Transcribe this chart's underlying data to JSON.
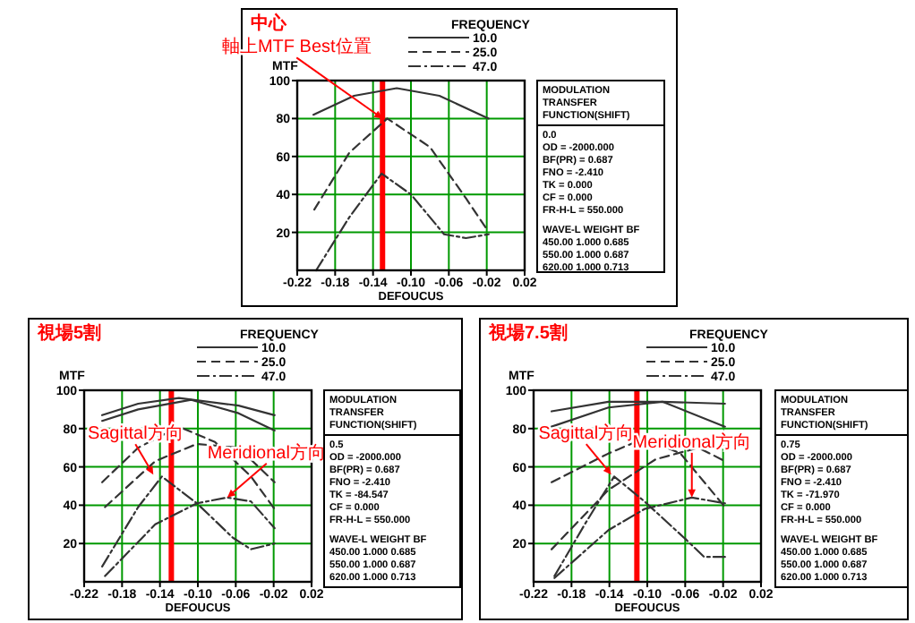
{
  "chart_data": [
    {
      "type": "line",
      "title": "中心",
      "xlabel": "DEFOUCUS",
      "ylabel": "MTF",
      "legend_title": "FREQUENCY",
      "legend": "top",
      "grid": true,
      "xlim": [
        -0.22,
        0.02
      ],
      "ylim": [
        0,
        100
      ],
      "xticks": [
        {
          "value": -0.22,
          "label": "-0.22"
        },
        {
          "value": -0.18,
          "label": "-0.18"
        },
        {
          "value": -0.14,
          "label": "-0.14"
        },
        {
          "value": -0.1,
          "label": "-0.10"
        },
        {
          "value": -0.06,
          "label": "-0.06"
        },
        {
          "value": -0.02,
          "label": "-0.02"
        },
        {
          "value": 0.02,
          "label": "0.02"
        }
      ],
      "yticks": [
        20,
        40,
        60,
        80,
        100
      ],
      "ref_lines": [
        {
          "axis": "x",
          "value": -0.13,
          "color": "#ff0000"
        }
      ],
      "series": [
        {
          "name": "10.0",
          "color": "#333333",
          "line_style": "solid",
          "x": [
            -0.203,
            -0.16,
            -0.115,
            -0.07,
            -0.018
          ],
          "values": [
            82,
            92,
            96,
            92,
            80
          ]
        },
        {
          "name": "25.0",
          "color": "#333333",
          "line_style": "dashed",
          "x": [
            -0.202,
            -0.165,
            -0.125,
            -0.08,
            -0.042,
            -0.019
          ],
          "values": [
            32,
            62,
            80,
            65,
            38,
            21
          ]
        },
        {
          "name": "47.0",
          "color": "#333333",
          "line_style": "dashdot",
          "x": [
            -0.2,
            -0.165,
            -0.131,
            -0.1,
            -0.065,
            -0.042,
            -0.018
          ],
          "values": [
            0,
            28,
            51,
            40,
            19,
            17,
            19
          ]
        }
      ],
      "annotations": [
        {
          "text": "軸上MTF Best位置",
          "x": -0.13,
          "y": 80
        },
        "MODULATION",
        "TRANSFER",
        "FUNCTION(SHIFT)",
        "0.0",
        "OD = -2000.000",
        "BF(PR) = 0.687",
        "FNO = -2.410",
        "TK = 0.000",
        "CF = 0.000",
        "FR-H-L = 550.000",
        "WAVE-L  WEIGHT  BF",
        "450.00  1.000  0.685",
        "550.00  1.000  0.687",
        "620.00  1.000  0.713"
      ]
    },
    {
      "type": "line",
      "title": "視場5割",
      "xlabel": "DEFOUCUS",
      "ylabel": "MTF",
      "legend_title": "FREQUENCY",
      "legend": "top",
      "grid": true,
      "xlim": [
        -0.22,
        0.02
      ],
      "ylim": [
        0,
        100
      ],
      "xticks": [
        {
          "value": -0.22,
          "label": "-0.22"
        },
        {
          "value": -0.18,
          "label": "-0.18"
        },
        {
          "value": -0.14,
          "label": "-0.14"
        },
        {
          "value": -0.1,
          "label": "-0.10"
        },
        {
          "value": -0.06,
          "label": "-0.06"
        },
        {
          "value": -0.02,
          "label": "-0.02"
        },
        {
          "value": 0.02,
          "label": "0.02"
        }
      ],
      "yticks": [
        20,
        40,
        60,
        80,
        100
      ],
      "ref_lines": [
        {
          "axis": "x",
          "value": -0.128,
          "color": "#ff0000"
        }
      ],
      "series": [
        {
          "name": "10.0",
          "color": "#333333",
          "line_style": "solid",
          "x": [
            -0.201,
            -0.163,
            -0.12,
            -0.057,
            -0.019
          ],
          "values": [
            87,
            93,
            96,
            92,
            87
          ]
        },
        {
          "color": "#333333",
          "line_style": "solid",
          "x": [
            -0.201,
            -0.163,
            -0.107,
            -0.057,
            -0.019
          ],
          "values": [
            84,
            90,
            95,
            88,
            79
          ]
        },
        {
          "name": "25.0",
          "color": "#333333",
          "line_style": "dashed",
          "x": [
            -0.201,
            -0.163,
            -0.12,
            -0.082,
            -0.044,
            -0.019
          ],
          "values": [
            52,
            70,
            81,
            73,
            55,
            38
          ]
        },
        {
          "color": "#333333",
          "line_style": "dashed",
          "x": [
            -0.198,
            -0.145,
            -0.101,
            -0.057,
            -0.019
          ],
          "values": [
            39,
            63,
            72,
            70,
            52
          ]
        },
        {
          "name": "47.0",
          "color": "#333333",
          "line_style": "dashdot",
          "x": [
            -0.201,
            -0.163,
            -0.138,
            -0.101,
            -0.063,
            -0.044,
            -0.019
          ],
          "values": [
            8,
            39,
            55,
            41,
            23,
            17,
            20
          ]
        },
        {
          "color": "#333333",
          "line_style": "dashdot",
          "x": [
            -0.198,
            -0.145,
            -0.101,
            -0.069,
            -0.044,
            -0.019
          ],
          "values": [
            3,
            30,
            41,
            44,
            42,
            28
          ]
        }
      ],
      "annotations": [
        {
          "text": "Sagittal方向",
          "x": -0.147,
          "y": 56
        },
        {
          "text": "Meridional方向",
          "x": -0.069,
          "y": 44
        },
        "MODULATION",
        "TRANSFER",
        "FUNCTION(SHIFT)",
        "0.5",
        "OD = -2000.000",
        "BF(PR) = 0.687",
        "FNO = -2.410",
        "TK = -84.547",
        "CF = 0.000",
        "FR-H-L = 550.000",
        "WAVE-L  WEIGHT  BF",
        "450.00  1.000  0.685",
        "550.00  1.000  0.687",
        "620.00  1.000  0.713"
      ]
    },
    {
      "type": "line",
      "title": "視場7.5割",
      "xlabel": "DEFOUCUS",
      "ylabel": "MTF",
      "legend_title": "FREQUENCY",
      "legend": "top",
      "grid": true,
      "xlim": [
        -0.22,
        0.02
      ],
      "ylim": [
        0,
        100
      ],
      "xticks": [
        {
          "value": -0.22,
          "label": "-0.22"
        },
        {
          "value": -0.18,
          "label": "-0.18"
        },
        {
          "value": -0.14,
          "label": "-0.14"
        },
        {
          "value": -0.1,
          "label": "-0.10"
        },
        {
          "value": -0.06,
          "label": "-0.06"
        },
        {
          "value": -0.02,
          "label": "-0.02"
        },
        {
          "value": 0.02,
          "label": "0.02"
        }
      ],
      "yticks": [
        20,
        40,
        60,
        80,
        100
      ],
      "ref_lines": [
        {
          "axis": "x",
          "value": -0.111,
          "color": "#ff0000"
        }
      ],
      "series": [
        {
          "name": "10.0",
          "color": "#333333",
          "line_style": "solid",
          "x": [
            -0.201,
            -0.141,
            -0.084,
            -0.018
          ],
          "values": [
            81,
            91,
            94,
            93
          ]
        },
        {
          "color": "#333333",
          "line_style": "solid",
          "x": [
            -0.201,
            -0.141,
            -0.084,
            -0.018
          ],
          "values": [
            89,
            94,
            94,
            81
          ]
        },
        {
          "name": "25.0",
          "color": "#333333",
          "line_style": "dashed",
          "x": [
            -0.201,
            -0.141,
            -0.103,
            -0.065,
            -0.018
          ],
          "values": [
            52,
            67,
            75,
            67,
            39
          ]
        },
        {
          "color": "#333333",
          "line_style": "dashed",
          "x": [
            -0.201,
            -0.141,
            -0.091,
            -0.046,
            -0.018
          ],
          "values": [
            17,
            48,
            64,
            70,
            63
          ]
        },
        {
          "name": "47.0",
          "color": "#333333",
          "line_style": "dashdot",
          "x": [
            -0.198,
            -0.166,
            -0.135,
            -0.103,
            -0.059,
            -0.04,
            -0.018
          ],
          "values": [
            3,
            30,
            55,
            42,
            22,
            13,
            13
          ]
        },
        {
          "color": "#333333",
          "line_style": "dashdot",
          "x": [
            -0.198,
            -0.141,
            -0.103,
            -0.053,
            -0.018
          ],
          "values": [
            2,
            27,
            38,
            44,
            41
          ]
        }
      ],
      "annotations": [
        {
          "text": "Sagittal方向",
          "x": -0.138,
          "y": 56
        },
        {
          "text": "Meridional方向",
          "x": -0.053,
          "y": 44
        },
        "MODULATION",
        "TRANSFER",
        "FUNCTION(SHIFT)",
        "0.75",
        "OD = -2000.000",
        "BF(PR) = 0.687",
        "FNO = -2.410",
        "TK = -71.970",
        "CF = 0.000",
        "FR-H-L = 550.000",
        "WAVE-L  WEIGHT  BF",
        "450.00  1.000  0.685",
        "550.00  1.000  0.687",
        "620.00  1.000  0.713"
      ]
    }
  ]
}
